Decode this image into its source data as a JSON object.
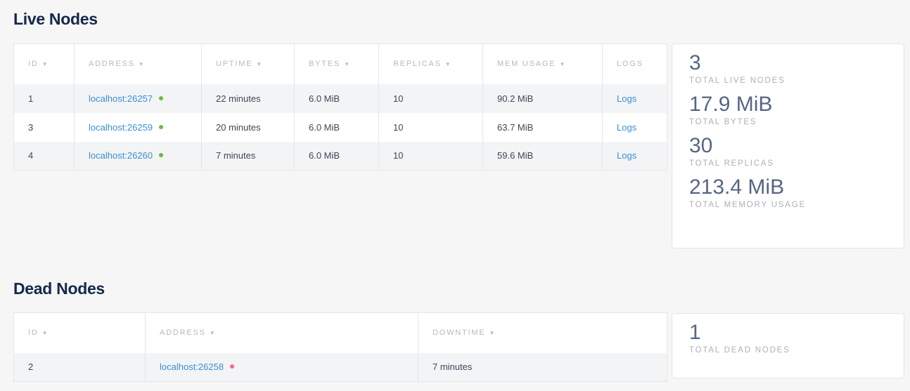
{
  "live": {
    "title": "Live Nodes",
    "columns": [
      "ID",
      "ADDRESS",
      "UPTIME",
      "BYTES",
      "REPLICAS",
      "MEM USAGE",
      "LOGS"
    ],
    "rows": [
      {
        "id": "1",
        "address": "localhost:26257",
        "uptime": "22 minutes",
        "bytes": "6.0 MiB",
        "replicas": "10",
        "mem": "90.2 MiB",
        "logs": "Logs"
      },
      {
        "id": "3",
        "address": "localhost:26259",
        "uptime": "20 minutes",
        "bytes": "6.0 MiB",
        "replicas": "10",
        "mem": "63.7 MiB",
        "logs": "Logs"
      },
      {
        "id": "4",
        "address": "localhost:26260",
        "uptime": "7 minutes",
        "bytes": "6.0 MiB",
        "replicas": "10",
        "mem": "59.6 MiB",
        "logs": "Logs"
      }
    ],
    "summary": [
      {
        "value": "3",
        "label": "TOTAL LIVE NODES"
      },
      {
        "value": "17.9 MiB",
        "label": "TOTAL BYTES"
      },
      {
        "value": "30",
        "label": "TOTAL REPLICAS"
      },
      {
        "value": "213.4 MiB",
        "label": "TOTAL MEMORY USAGE"
      }
    ]
  },
  "dead": {
    "title": "Dead Nodes",
    "columns": [
      "ID",
      "ADDRESS",
      "DOWNTIME"
    ],
    "rows": [
      {
        "id": "2",
        "address": "localhost:26258",
        "downtime": "7 minutes"
      }
    ],
    "summary": [
      {
        "value": "1",
        "label": "TOTAL DEAD NODES"
      }
    ]
  },
  "colors": {
    "live": "#6fb83f",
    "dead": "#ef6a7f",
    "link": "#3b8fd2"
  }
}
